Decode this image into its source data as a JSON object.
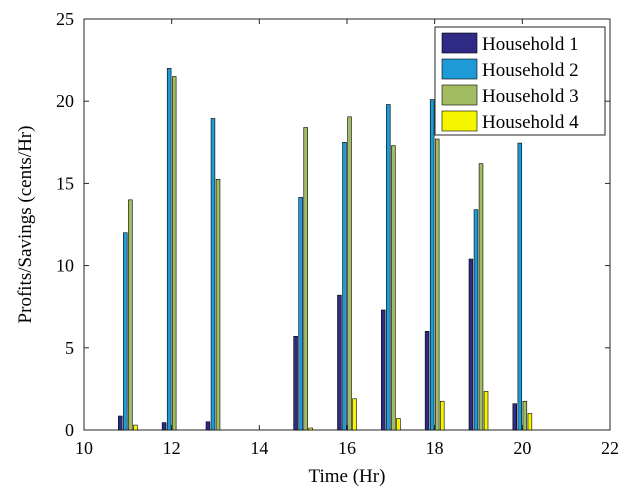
{
  "chart_data": {
    "type": "bar",
    "title": "",
    "xlabel": "Time (Hr)",
    "ylabel": "Profits/Savings (cents/Hr)",
    "xlim": [
      10,
      22
    ],
    "ylim": [
      0,
      25
    ],
    "x_ticks": [
      10,
      12,
      14,
      16,
      18,
      20,
      22
    ],
    "y_ticks": [
      0,
      5,
      10,
      15,
      20,
      25
    ],
    "grid": false,
    "legend_position": "top-right",
    "x": [
      11,
      12,
      13,
      14,
      15,
      16,
      17,
      18,
      19,
      20
    ],
    "series": [
      {
        "name": "Household 1",
        "color": "#2e2a86",
        "values": [
          0.85,
          0.45,
          0.5,
          0,
          5.7,
          8.2,
          7.3,
          6.0,
          10.4,
          1.6
        ]
      },
      {
        "name": "Household 2",
        "color": "#1e9bd7",
        "values": [
          12.0,
          22.0,
          18.95,
          0,
          14.15,
          17.5,
          19.8,
          20.1,
          13.4,
          17.45
        ]
      },
      {
        "name": "Household 3",
        "color": "#a2bc62",
        "values": [
          14.0,
          21.5,
          15.25,
          0,
          18.4,
          19.05,
          17.3,
          17.7,
          16.2,
          1.75
        ]
      },
      {
        "name": "Household 4",
        "color": "#f5f500",
        "values": [
          0.3,
          0,
          0,
          0,
          0.12,
          1.9,
          0.7,
          1.75,
          2.35,
          1.0
        ]
      }
    ]
  }
}
